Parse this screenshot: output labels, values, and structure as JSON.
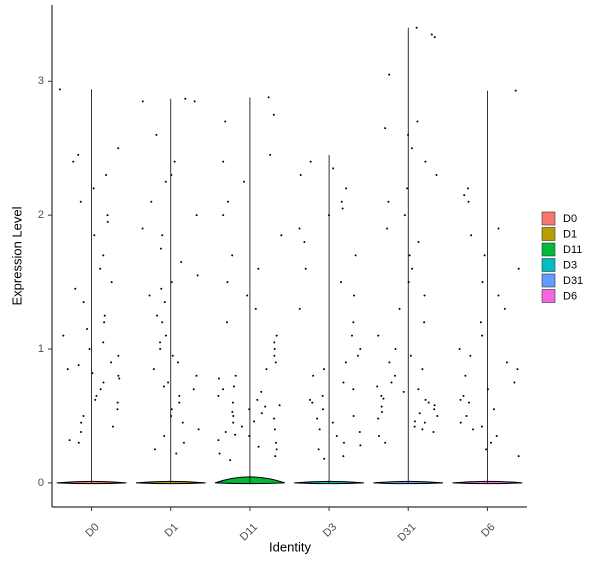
{
  "chart_data": {
    "type": "violin",
    "x_label": "Identity",
    "y_label": "Expression Level",
    "categories": [
      "D0",
      "D1",
      "D11",
      "D3",
      "D31",
      "D6"
    ],
    "ylim": [
      -0.18,
      3.57
    ],
    "yticks": [
      0,
      1,
      2,
      3
    ],
    "series": [
      {
        "name": "D0",
        "color": "#F8766D",
        "range": [
          0,
          2.94
        ],
        "values": [
          2.94,
          2.5,
          2.45,
          2.4,
          2.3,
          2.2,
          2.1,
          2.0,
          1.95,
          1.85,
          1.7,
          1.6,
          1.5,
          1.45,
          1.35,
          1.25,
          1.2,
          1.1,
          1.05,
          1.0,
          0.95,
          0.9,
          0.85,
          0.82,
          0.8,
          0.75,
          0.7,
          0.65,
          0.6,
          0.55,
          0.5,
          0.45,
          0.42,
          0.38,
          0.32,
          0.3,
          1.15,
          0.88,
          0.78,
          0.62
        ]
      },
      {
        "name": "D1",
        "color": "#B79F00",
        "range": [
          0,
          2.87
        ],
        "values": [
          2.87,
          2.85,
          2.85,
          2.6,
          2.4,
          2.3,
          2.25,
          2.1,
          2.0,
          1.9,
          1.85,
          1.75,
          1.65,
          1.55,
          1.5,
          1.4,
          1.35,
          1.25,
          1.2,
          1.1,
          1.0,
          0.95,
          0.9,
          0.85,
          0.8,
          0.75,
          0.7,
          0.65,
          0.6,
          0.55,
          0.5,
          0.45,
          0.4,
          0.35,
          0.3,
          0.25,
          0.22,
          1.45,
          1.05,
          0.72
        ]
      },
      {
        "name": "D11",
        "color": "#00BA38",
        "range": [
          0,
          2.88
        ],
        "values": [
          2.88,
          2.75,
          2.7,
          2.45,
          2.4,
          2.25,
          2.1,
          2.0,
          1.85,
          1.7,
          1.6,
          1.5,
          1.4,
          1.3,
          1.2,
          1.1,
          1.05,
          1.0,
          0.95,
          0.9,
          0.85,
          0.8,
          0.78,
          0.72,
          0.7,
          0.65,
          0.62,
          0.6,
          0.57,
          0.55,
          0.52,
          0.5,
          0.48,
          0.45,
          0.42,
          0.4,
          0.38,
          0.35,
          0.32,
          0.3,
          0.27,
          0.25,
          0.22,
          0.2,
          0.17,
          0.58,
          0.46,
          0.68,
          0.36,
          0.53
        ]
      },
      {
        "name": "D3",
        "color": "#00BFC4",
        "range": [
          0,
          2.45
        ],
        "values": [
          2.4,
          2.35,
          2.3,
          2.2,
          2.1,
          2.05,
          2.0,
          1.9,
          1.8,
          1.7,
          1.6,
          1.5,
          1.4,
          1.3,
          1.2,
          1.1,
          1.0,
          0.95,
          0.9,
          0.85,
          0.8,
          0.75,
          0.7,
          0.65,
          0.6,
          0.55,
          0.5,
          0.45,
          0.4,
          0.35,
          0.3,
          0.25,
          0.2,
          0.18,
          0.62,
          0.48,
          0.38,
          0.28
        ]
      },
      {
        "name": "D31",
        "color": "#619CFF",
        "range": [
          0,
          3.4
        ],
        "values": [
          3.4,
          3.35,
          3.33,
          3.05,
          2.7,
          2.65,
          2.6,
          2.5,
          2.4,
          2.3,
          2.2,
          2.1,
          2.0,
          1.9,
          1.8,
          1.7,
          1.6,
          1.5,
          1.4,
          1.3,
          1.2,
          1.1,
          1.0,
          0.95,
          0.9,
          0.85,
          0.8,
          0.75,
          0.7,
          0.68,
          0.65,
          0.62,
          0.6,
          0.58,
          0.55,
          0.52,
          0.5,
          0.48,
          0.45,
          0.42,
          0.4,
          0.38,
          0.35,
          0.3,
          0.57,
          0.63,
          0.53,
          0.72,
          0.46
        ]
      },
      {
        "name": "D6",
        "color": "#F564E3",
        "range": [
          0,
          2.93
        ],
        "values": [
          2.93,
          2.2,
          2.15,
          2.1,
          1.9,
          1.85,
          1.7,
          1.6,
          1.5,
          1.4,
          1.3,
          1.2,
          1.1,
          1.0,
          0.95,
          0.9,
          0.85,
          0.8,
          0.75,
          0.7,
          0.65,
          0.6,
          0.55,
          0.5,
          0.45,
          0.4,
          0.35,
          0.3,
          0.25,
          0.2,
          0.62,
          0.42
        ]
      }
    ]
  }
}
